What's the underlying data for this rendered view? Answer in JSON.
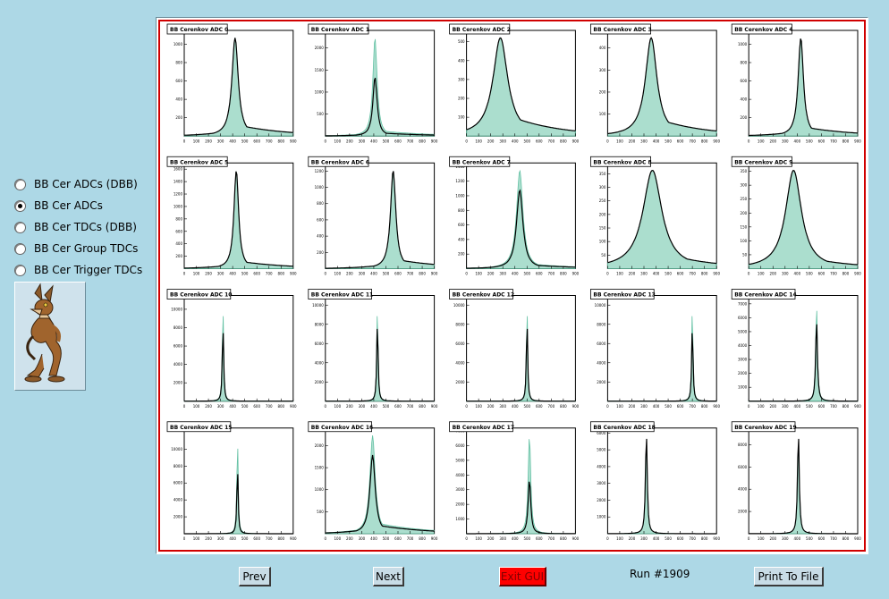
{
  "radios": [
    {
      "label": "BB Cer ADCs (DBB)",
      "checked": false
    },
    {
      "label": "BB Cer ADCs",
      "checked": true
    },
    {
      "label": "BB Cer TDCs (DBB)",
      "checked": false
    },
    {
      "label": "BB Cer Group TDCs",
      "checked": false
    },
    {
      "label": "BB Cer Trigger TDCs",
      "checked": false
    }
  ],
  "buttons": {
    "prev": "Prev",
    "next": "Next",
    "exit": "Exit GUI",
    "print": "Print To File"
  },
  "run_label": "Run #1909",
  "colors": {
    "background": "#add8e6",
    "frame": "#d00000",
    "fill": "#66c2a5",
    "exit": "#ff0000"
  },
  "chart_data": [
    {
      "type": "area",
      "title": "BB Cerenkov ADC 0",
      "xlim": [
        0,
        900
      ],
      "yticks": [
        200,
        400,
        600,
        800,
        1000
      ],
      "peak": 420,
      "width": 30,
      "tail": 0.12,
      "ymax": 1150,
      "ratio": 1.0
    },
    {
      "type": "area",
      "title": "BB Cerenkov ADC 1",
      "xlim": [
        0,
        900
      ],
      "yticks": [
        500,
        1000,
        1500,
        2000
      ],
      "peak": 410,
      "width": 20,
      "tail": 0.06,
      "ymax": 2400,
      "ratio": 0.6
    },
    {
      "type": "area",
      "title": "BB Cerenkov ADC 2",
      "xlim": [
        0,
        900
      ],
      "yticks": [
        100,
        200,
        300,
        400,
        500
      ],
      "peak": 280,
      "width": 70,
      "tail": 0.25,
      "ymax": 560,
      "ratio": 1.0
    },
    {
      "type": "area",
      "title": "BB Cerenkov ADC 3",
      "xlim": [
        0,
        900
      ],
      "yticks": [
        100,
        200,
        300,
        400
      ],
      "peak": 360,
      "width": 55,
      "tail": 0.2,
      "ymax": 480,
      "ratio": 1.0
    },
    {
      "type": "area",
      "title": "BB Cerenkov ADC 4",
      "xlim": [
        0,
        900
      ],
      "yticks": [
        200,
        400,
        600,
        800,
        1000
      ],
      "peak": 430,
      "width": 25,
      "tail": 0.1,
      "ymax": 1150,
      "ratio": 1.0
    },
    {
      "type": "area",
      "title": "BB Cerenkov ADC 5",
      "xlim": [
        0,
        900
      ],
      "yticks": [
        200,
        400,
        600,
        800,
        1000,
        1200,
        1400,
        1600
      ],
      "peak": 430,
      "width": 22,
      "tail": 0.08,
      "ymax": 1700,
      "ratio": 1.0
    },
    {
      "type": "area",
      "title": "BB Cerenkov ADC 6",
      "xlim": [
        0,
        900
      ],
      "yticks": [
        200,
        400,
        600,
        800,
        1000,
        1200
      ],
      "peak": 560,
      "width": 25,
      "tail": 0.1,
      "ymax": 1300,
      "ratio": 1.0
    },
    {
      "type": "area",
      "title": "BB Cerenkov ADC 7",
      "xlim": [
        0,
        900
      ],
      "yticks": [
        200,
        400,
        600,
        800,
        1000,
        1200,
        1400
      ],
      "peak": 440,
      "width": 30,
      "tail": 0.06,
      "ymax": 1450,
      "ratio": 0.8
    },
    {
      "type": "area",
      "title": "BB Cerenkov ADC 8",
      "xlim": [
        0,
        900
      ],
      "yticks": [
        50,
        100,
        150,
        200,
        250,
        300,
        350
      ],
      "peak": 370,
      "width": 90,
      "tail": 0.2,
      "ymax": 390,
      "ratio": 1.0
    },
    {
      "type": "area",
      "title": "BB Cerenkov ADC 9",
      "xlim": [
        0,
        900
      ],
      "yticks": [
        50,
        100,
        150,
        200,
        250,
        300,
        350
      ],
      "peak": 370,
      "width": 75,
      "tail": 0.15,
      "ymax": 380,
      "ratio": 1.0
    },
    {
      "type": "area",
      "title": "BB Cerenkov ADC 10",
      "xlim": [
        0,
        900
      ],
      "yticks": [
        2000,
        4000,
        6000,
        8000,
        10000
      ],
      "peak": 320,
      "width": 6,
      "tail": 0.0,
      "ymax": 11500,
      "ratio": 0.8
    },
    {
      "type": "area",
      "title": "BB Cerenkov ADC 11",
      "xlim": [
        0,
        900
      ],
      "yticks": [
        2000,
        4000,
        6000,
        8000,
        10000
      ],
      "peak": 430,
      "width": 6,
      "tail": 0.0,
      "ymax": 11000,
      "ratio": 0.85
    },
    {
      "type": "area",
      "title": "BB Cerenkov ADC 12",
      "xlim": [
        0,
        900
      ],
      "yticks": [
        2000,
        4000,
        6000,
        8000,
        10000
      ],
      "peak": 500,
      "width": 6,
      "tail": 0.0,
      "ymax": 11000,
      "ratio": 0.85
    },
    {
      "type": "area",
      "title": "BB Cerenkov ADC 13",
      "xlim": [
        0,
        900
      ],
      "yticks": [
        2000,
        4000,
        6000,
        8000,
        10000
      ],
      "peak": 700,
      "width": 6,
      "tail": 0.0,
      "ymax": 11000,
      "ratio": 0.8
    },
    {
      "type": "area",
      "title": "BB Cerenkov ADC 14",
      "xlim": [
        0,
        900
      ],
      "yticks": [
        1000,
        2000,
        3000,
        4000,
        5000,
        6000,
        7000
      ],
      "peak": 560,
      "width": 8,
      "tail": 0.0,
      "ymax": 7600,
      "ratio": 0.85
    },
    {
      "type": "area",
      "title": "BB Cerenkov ADC 15",
      "xlim": [
        0,
        900
      ],
      "yticks": [
        2000,
        4000,
        6000,
        8000,
        10000
      ],
      "peak": 440,
      "width": 6,
      "tail": 0.0,
      "ymax": 12500,
      "ratio": 0.7
    },
    {
      "type": "area",
      "title": "BB Cerenkov ADC 16",
      "xlim": [
        0,
        900
      ],
      "yticks": [
        500,
        1000,
        1500,
        2000
      ],
      "peak": 390,
      "width": 25,
      "tail": 0.12,
      "ymax": 2400,
      "ratio": 0.8
    },
    {
      "type": "area",
      "title": "BB Cerenkov ADC 17",
      "xlim": [
        0,
        900
      ],
      "yticks": [
        1000,
        2000,
        3000,
        4000,
        5000,
        6000,
        7000
      ],
      "peak": 520,
      "width": 12,
      "tail": 0.0,
      "ymax": 7200,
      "ratio": 0.55
    },
    {
      "type": "area",
      "title": "BB Cerenkov ADC 18",
      "xlim": [
        0,
        900
      ],
      "yticks": [
        1000,
        2000,
        3000,
        4000,
        5000,
        6000
      ],
      "peak": 320,
      "width": 8,
      "tail": 0.0,
      "ymax": 6300,
      "ratio": 1.05
    },
    {
      "type": "area",
      "title": "BB Cerenkov ADC 19",
      "xlim": [
        0,
        900
      ],
      "yticks": [
        2000,
        4000,
        6000,
        8000
      ],
      "peak": 410,
      "width": 8,
      "tail": 0.0,
      "ymax": 9500,
      "ratio": 1.05
    }
  ],
  "xticks": [
    0,
    100,
    200,
    300,
    400,
    500,
    600,
    700,
    800,
    900
  ]
}
